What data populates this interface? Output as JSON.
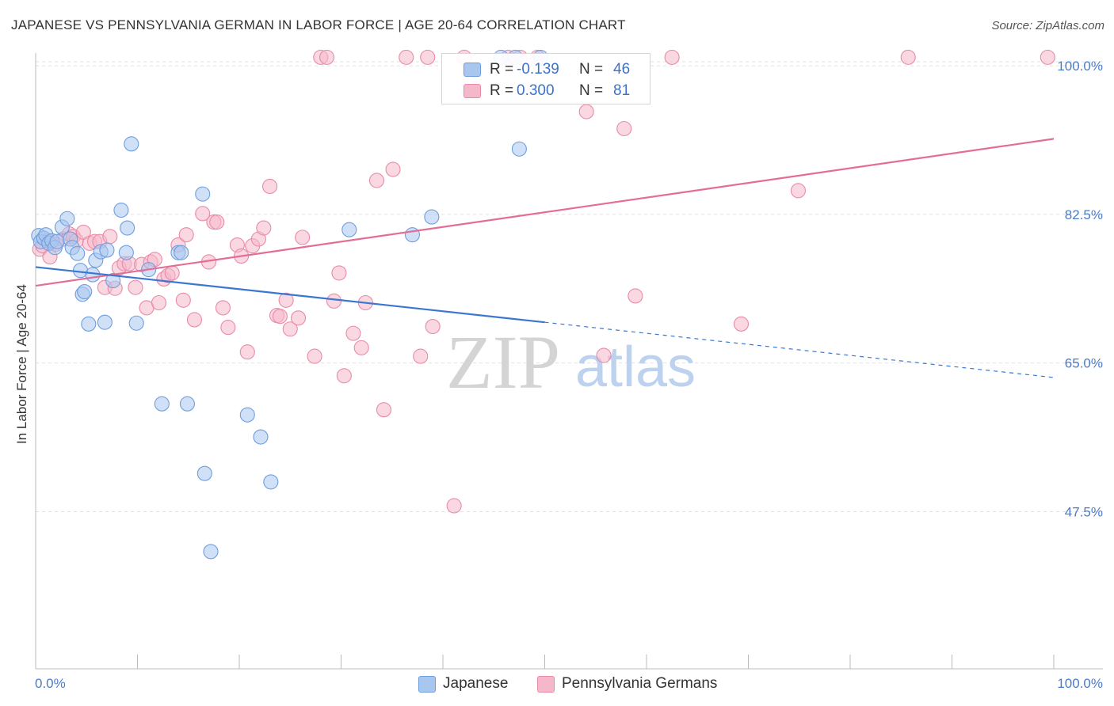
{
  "header": {
    "title": "JAPANESE VS PENNSYLVANIA GERMAN IN LABOR FORCE | AGE 20-64 CORRELATION CHART",
    "source": "Source: ZipAtlas.com"
  },
  "watermark": {
    "zip": "ZIP",
    "atlas": "atlas"
  },
  "stats": [
    {
      "r_label": "R =",
      "r_value": "-0.139",
      "n_label": "N =",
      "n_value": "46",
      "color": "#a9c6ee"
    },
    {
      "r_label": "R =",
      "r_value": "0.300",
      "n_label": "N =",
      "n_value": "81",
      "color": "#f5b8cb"
    }
  ],
  "legend": {
    "japanese": {
      "label": "Japanese",
      "color": "#a9c6ee"
    },
    "pennsylvania": {
      "label": "Pennsylvania Germans",
      "color": "#f5b8cb"
    }
  },
  "colors": {
    "blue_fill": "#a9c6ee",
    "blue_stroke": "#6d9ee0",
    "blue_line": "#3b76d1",
    "pink_fill": "#f5b8cb",
    "pink_stroke": "#e98aa8",
    "pink_line": "#e46d96",
    "grid": "#e1e1e1",
    "tick_text": "#4a7bc8"
  },
  "chart_data": {
    "type": "scatter",
    "title": "JAPANESE VS PENNSYLVANIA GERMAN IN LABOR FORCE | AGE 20-64 CORRELATION CHART",
    "xlabel": "",
    "ylabel": "In Labor Force | Age 20-64",
    "xlim": [
      0,
      100
    ],
    "ylim": [
      29,
      101.5
    ],
    "x_tick_labels": [
      "0.0%",
      "100.0%"
    ],
    "y_ticks": [
      47.5,
      65.0,
      82.5,
      100.0
    ],
    "y_tick_labels": [
      "47.5%",
      "65.0%",
      "82.5%",
      "100.0%"
    ],
    "grid": true,
    "series": [
      {
        "name": "Japanese",
        "r": -0.139,
        "n": 46,
        "points": [
          [
            0.3,
            80.0
          ],
          [
            0.5,
            79.3
          ],
          [
            0.8,
            79.7
          ],
          [
            1.0,
            80.1
          ],
          [
            1.3,
            79.1
          ],
          [
            1.6,
            79.4
          ],
          [
            1.9,
            78.6
          ],
          [
            2.1,
            79.3
          ],
          [
            2.6,
            81.0
          ],
          [
            3.1,
            82.0
          ],
          [
            3.4,
            79.6
          ],
          [
            3.6,
            78.6
          ],
          [
            4.1,
            77.9
          ],
          [
            4.4,
            75.9
          ],
          [
            4.6,
            73.1
          ],
          [
            4.8,
            73.4
          ],
          [
            5.2,
            69.6
          ],
          [
            5.6,
            75.4
          ],
          [
            5.9,
            77.1
          ],
          [
            6.4,
            78.1
          ],
          [
            6.8,
            69.8
          ],
          [
            7.0,
            78.3
          ],
          [
            7.6,
            74.7
          ],
          [
            8.4,
            83.0
          ],
          [
            8.9,
            78.0
          ],
          [
            9.0,
            80.9
          ],
          [
            9.4,
            90.8
          ],
          [
            9.9,
            69.7
          ],
          [
            11.1,
            76.0
          ],
          [
            12.4,
            60.2
          ],
          [
            14.0,
            78.0
          ],
          [
            14.3,
            78.0
          ],
          [
            14.9,
            60.2
          ],
          [
            16.4,
            84.9
          ],
          [
            16.6,
            52.0
          ],
          [
            17.2,
            42.8
          ],
          [
            20.8,
            58.9
          ],
          [
            22.1,
            56.3
          ],
          [
            23.1,
            51.0
          ],
          [
            30.8,
            80.7
          ],
          [
            37.0,
            80.1
          ],
          [
            38.9,
            82.2
          ],
          [
            45.7,
            101.0
          ],
          [
            47.1,
            101.0
          ],
          [
            47.5,
            90.2
          ],
          [
            49.6,
            101.0
          ]
        ]
      },
      {
        "name": "Pennsylvania Germans",
        "r": 0.3,
        "n": 81,
        "points": [
          [
            0.4,
            78.4
          ],
          [
            0.7,
            78.8
          ],
          [
            1.2,
            79.4
          ],
          [
            1.4,
            77.5
          ],
          [
            2.0,
            79.0
          ],
          [
            2.7,
            79.6
          ],
          [
            3.3,
            80.2
          ],
          [
            3.7,
            79.9
          ],
          [
            4.0,
            79.4
          ],
          [
            4.7,
            80.4
          ],
          [
            5.3,
            79.1
          ],
          [
            5.8,
            79.3
          ],
          [
            6.3,
            79.3
          ],
          [
            6.8,
            73.9
          ],
          [
            7.3,
            79.9
          ],
          [
            7.8,
            73.8
          ],
          [
            8.2,
            76.2
          ],
          [
            8.7,
            76.7
          ],
          [
            9.2,
            76.7
          ],
          [
            9.8,
            73.9
          ],
          [
            10.4,
            76.6
          ],
          [
            10.9,
            71.5
          ],
          [
            11.3,
            76.9
          ],
          [
            11.7,
            77.2
          ],
          [
            12.1,
            72.1
          ],
          [
            12.6,
            74.9
          ],
          [
            13.0,
            75.3
          ],
          [
            13.4,
            75.6
          ],
          [
            14.0,
            78.9
          ],
          [
            14.5,
            72.4
          ],
          [
            14.8,
            80.1
          ],
          [
            15.6,
            70.1
          ],
          [
            16.4,
            82.6
          ],
          [
            17.0,
            76.9
          ],
          [
            17.5,
            81.6
          ],
          [
            17.8,
            81.6
          ],
          [
            18.4,
            71.5
          ],
          [
            18.9,
            69.2
          ],
          [
            19.8,
            78.9
          ],
          [
            20.2,
            77.6
          ],
          [
            20.8,
            66.3
          ],
          [
            21.3,
            78.8
          ],
          [
            21.9,
            79.6
          ],
          [
            22.4,
            80.9
          ],
          [
            23.0,
            85.8
          ],
          [
            23.7,
            70.6
          ],
          [
            24.0,
            70.5
          ],
          [
            24.6,
            72.4
          ],
          [
            25.0,
            69.0
          ],
          [
            25.8,
            70.3
          ],
          [
            26.2,
            79.8
          ],
          [
            27.4,
            65.8
          ],
          [
            28.0,
            101.0
          ],
          [
            28.6,
            101.0
          ],
          [
            29.3,
            72.3
          ],
          [
            29.8,
            75.6
          ],
          [
            30.3,
            63.5
          ],
          [
            31.2,
            68.5
          ],
          [
            32.0,
            66.8
          ],
          [
            32.4,
            72.1
          ],
          [
            33.5,
            86.5
          ],
          [
            34.2,
            59.5
          ],
          [
            35.1,
            87.8
          ],
          [
            36.4,
            101.0
          ],
          [
            37.8,
            65.8
          ],
          [
            38.5,
            101.0
          ],
          [
            39.0,
            69.3
          ],
          [
            41.1,
            48.2
          ],
          [
            42.1,
            101.0
          ],
          [
            46.4,
            101.0
          ],
          [
            47.6,
            101.0
          ],
          [
            49.3,
            101.0
          ],
          [
            54.1,
            94.6
          ],
          [
            55.8,
            65.9
          ],
          [
            57.8,
            92.6
          ],
          [
            58.9,
            72.9
          ],
          [
            62.5,
            101.0
          ],
          [
            69.3,
            69.6
          ],
          [
            74.9,
            85.3
          ],
          [
            85.7,
            101.0
          ],
          [
            99.4,
            101.0
          ]
        ]
      }
    ],
    "trendlines": [
      {
        "name": "Japanese",
        "solid": [
          [
            0,
            76.3
          ],
          [
            50,
            69.8
          ]
        ],
        "dashed": [
          [
            50,
            69.8
          ],
          [
            100,
            63.3
          ]
        ]
      },
      {
        "name": "Pennsylvania Germans",
        "solid": [
          [
            0,
            74.1
          ],
          [
            100,
            91.4
          ]
        ]
      }
    ]
  }
}
